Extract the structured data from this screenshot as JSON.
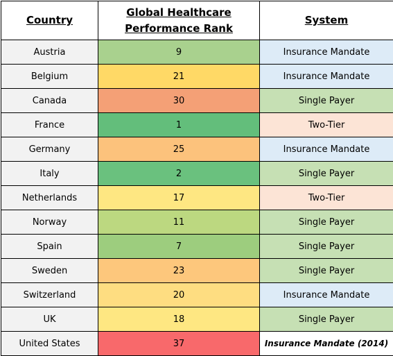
{
  "table": {
    "headers": {
      "country": "Country",
      "rank_line1": "Global Healthcare",
      "rank_line2": "Performance Rank",
      "system": "System"
    },
    "rows": [
      {
        "country": "Austria",
        "rank": "9",
        "system": "Insurance Mandate",
        "rank_color": "#a9d18e",
        "system_color": "#ddebf7"
      },
      {
        "country": "Belgium",
        "rank": "21",
        "system": "Insurance Mandate",
        "rank_color": "#ffd966",
        "system_color": "#ddebf7"
      },
      {
        "country": "Canada",
        "rank": "30",
        "system": "Single Payer",
        "rank_color": "#f4a076",
        "system_color": "#c6e0b4"
      },
      {
        "country": "France",
        "rank": "1",
        "system": "Two-Tier",
        "rank_color": "#63be7b",
        "system_color": "#fce4d6"
      },
      {
        "country": "Germany",
        "rank": "25",
        "system": "Insurance Mandate",
        "rank_color": "#fcc27c",
        "system_color": "#ddebf7"
      },
      {
        "country": "Italy",
        "rank": "2",
        "system": "Single Payer",
        "rank_color": "#6ac17e",
        "system_color": "#c6e0b4"
      },
      {
        "country": "Netherlands",
        "rank": "17",
        "system": "Two-Tier",
        "rank_color": "#fee782",
        "system_color": "#fce4d6"
      },
      {
        "country": "Norway",
        "rank": "11",
        "system": "Single Payer",
        "rank_color": "#bcd880",
        "system_color": "#c6e0b4"
      },
      {
        "country": "Spain",
        "rank": "7",
        "system": "Single Payer",
        "rank_color": "#9dcd7e",
        "system_color": "#c6e0b4"
      },
      {
        "country": "Sweden",
        "rank": "23",
        "system": "Single Payer",
        "rank_color": "#fdc77c",
        "system_color": "#c6e0b4"
      },
      {
        "country": "Switzerland",
        "rank": "20",
        "system": "Insurance Mandate",
        "rank_color": "#fedd81",
        "system_color": "#ddebf7"
      },
      {
        "country": "UK",
        "rank": "18",
        "system": "Single Payer",
        "rank_color": "#fee782",
        "system_color": "#c6e0b4"
      },
      {
        "country": "United States",
        "rank": "37",
        "system": "Insurance Mandate (2014)",
        "rank_color": "#f8696b",
        "system_color": "#ffffff",
        "system_italic": true
      }
    ]
  }
}
